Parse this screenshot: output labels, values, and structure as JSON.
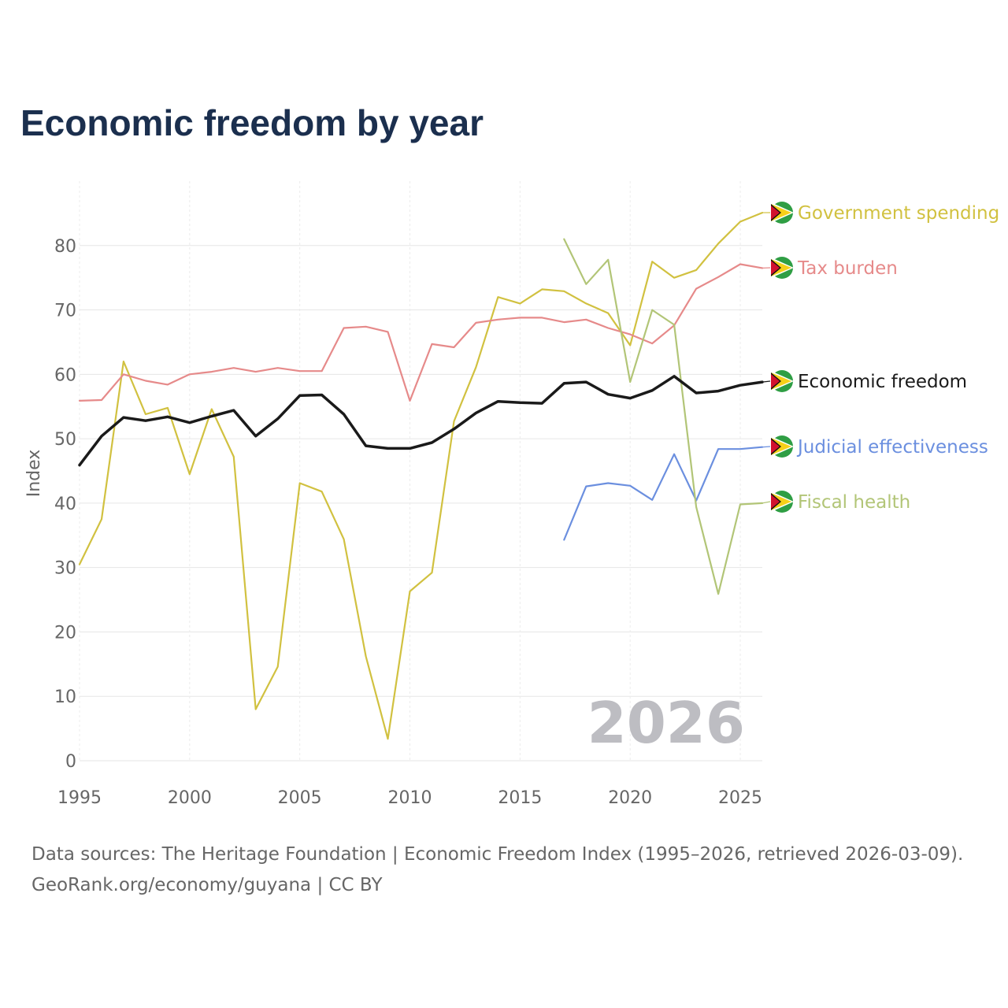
{
  "chart_data": {
    "type": "line",
    "title": "Economic freedom by year",
    "ylabel": "Index",
    "xlabel": "",
    "xlim": [
      1995,
      2026
    ],
    "ylim": [
      0,
      90
    ],
    "xticks": [
      "1995",
      "2000",
      "2005",
      "2010",
      "2015",
      "2020",
      "2025"
    ],
    "yticks": [
      "0",
      "10",
      "20",
      "30",
      "40",
      "50",
      "60",
      "70",
      "80"
    ],
    "current_year": "2026",
    "x": [
      1995,
      1996,
      1997,
      1998,
      1999,
      2000,
      2001,
      2002,
      2003,
      2004,
      2005,
      2006,
      2007,
      2008,
      2009,
      2010,
      2011,
      2012,
      2013,
      2014,
      2015,
      2016,
      2017,
      2018,
      2019,
      2020,
      2021,
      2022,
      2023,
      2024,
      2025,
      2026
    ],
    "series": [
      {
        "name": "Government spending",
        "color": "#d1c140",
        "values": [
          30.5,
          37.5,
          62,
          53.8,
          54.8,
          44.5,
          54.6,
          47.2,
          8,
          14.6,
          43.1,
          41.8,
          34.4,
          16.2,
          3.4,
          26.3,
          29.2,
          52.7,
          61.1,
          72,
          71,
          73.2,
          72.9,
          71,
          69.5,
          64.5,
          77.5,
          75,
          76.2,
          80.3,
          83.7,
          85.1
        ]
      },
      {
        "name": "Tax burden",
        "color": "#e68a8a",
        "values": [
          55.9,
          56,
          60,
          59,
          58.4,
          60,
          60.4,
          61,
          60.4,
          61,
          60.5,
          60.5,
          67.2,
          67.4,
          66.6,
          55.9,
          64.7,
          64.2,
          68,
          68.5,
          68.8,
          68.8,
          68.1,
          68.5,
          67.2,
          66.2,
          64.8,
          67.6,
          73.3,
          75.1,
          77.1,
          76.5
        ]
      },
      {
        "name": "Economic freedom",
        "color": "#1a1a1a",
        "values": [
          45.9,
          50.4,
          53.3,
          52.8,
          53.4,
          52.5,
          53.5,
          54.4,
          50.4,
          53.1,
          56.7,
          56.8,
          53.8,
          48.9,
          48.5,
          48.5,
          49.4,
          51.5,
          54,
          55.8,
          55.6,
          55.5,
          58.6,
          58.8,
          56.9,
          56.3,
          57.5,
          59.7,
          57.1,
          57.4,
          58.3,
          58.8
        ]
      },
      {
        "name": "Judicial effectiveness",
        "color": "#6b8fdf",
        "values": [
          null,
          null,
          null,
          null,
          null,
          null,
          null,
          null,
          null,
          null,
          null,
          null,
          null,
          null,
          null,
          null,
          null,
          null,
          null,
          null,
          null,
          null,
          34.3,
          42.6,
          43.1,
          42.7,
          40.5,
          47.6,
          40.4,
          48.4,
          48.4,
          48.7
        ]
      },
      {
        "name": "Fiscal health",
        "color": "#b2c577",
        "values": [
          null,
          null,
          null,
          null,
          null,
          null,
          null,
          null,
          null,
          null,
          null,
          null,
          null,
          null,
          null,
          null,
          null,
          null,
          null,
          null,
          null,
          null,
          81,
          74,
          77.8,
          58.8,
          70,
          67.7,
          39.4,
          25.9,
          39.8,
          40
        ]
      }
    ]
  },
  "source": {
    "line1": "Data sources: The Heritage Foundation | Economic Freedom Index (1995–2026, retrieved 2026-03-09).",
    "line2": "GeoRank.org/economy/guyana | CC BY"
  }
}
